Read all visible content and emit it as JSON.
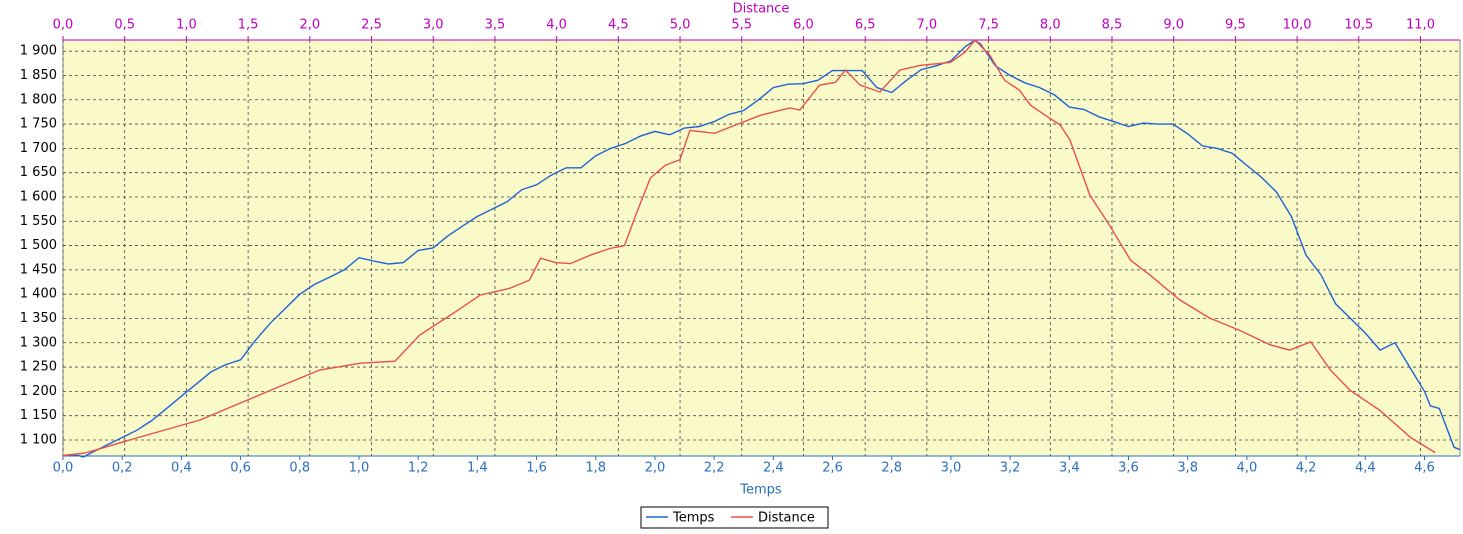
{
  "chart_data": {
    "type": "line",
    "xlabel": "Temps",
    "x2label": "Distance",
    "xlim": [
      0,
      4.72
    ],
    "x2lim": [
      0,
      11.32
    ],
    "ylim": [
      1067,
      1923
    ],
    "xticks": [
      {
        "value": 0,
        "label": "0,0"
      },
      {
        "value": 0.2,
        "label": "0,2"
      },
      {
        "value": 0.4,
        "label": "0,4"
      },
      {
        "value": 0.6,
        "label": "0,6"
      },
      {
        "value": 0.8,
        "label": "0,8"
      },
      {
        "value": 1.0,
        "label": "1,0"
      },
      {
        "value": 1.2,
        "label": "1,2"
      },
      {
        "value": 1.4,
        "label": "1,4"
      },
      {
        "value": 1.6,
        "label": "1,6"
      },
      {
        "value": 1.8,
        "label": "1,8"
      },
      {
        "value": 2.0,
        "label": "2,0"
      },
      {
        "value": 2.2,
        "label": "2,2"
      },
      {
        "value": 2.4,
        "label": "2,4"
      },
      {
        "value": 2.6,
        "label": "2,6"
      },
      {
        "value": 2.8,
        "label": "2,8"
      },
      {
        "value": 3.0,
        "label": "3,0"
      },
      {
        "value": 3.2,
        "label": "3,2"
      },
      {
        "value": 3.4,
        "label": "3,4"
      },
      {
        "value": 3.6,
        "label": "3,6"
      },
      {
        "value": 3.8,
        "label": "3,8"
      },
      {
        "value": 4.0,
        "label": "4,0"
      },
      {
        "value": 4.2,
        "label": "4,2"
      },
      {
        "value": 4.4,
        "label": "4,4"
      },
      {
        "value": 4.6,
        "label": "4,6"
      }
    ],
    "x2ticks": [
      {
        "value": 0,
        "label": "0,0"
      },
      {
        "value": 0.5,
        "label": "0,5"
      },
      {
        "value": 1.0,
        "label": "1,0"
      },
      {
        "value": 1.5,
        "label": "1,5"
      },
      {
        "value": 2.0,
        "label": "2,0"
      },
      {
        "value": 2.5,
        "label": "2,5"
      },
      {
        "value": 3.0,
        "label": "3,0"
      },
      {
        "value": 3.5,
        "label": "3,5"
      },
      {
        "value": 4.0,
        "label": "4,0"
      },
      {
        "value": 4.5,
        "label": "4,5"
      },
      {
        "value": 5.0,
        "label": "5,0"
      },
      {
        "value": 5.5,
        "label": "5,5"
      },
      {
        "value": 6.0,
        "label": "6,0"
      },
      {
        "value": 6.5,
        "label": "6,5"
      },
      {
        "value": 7.0,
        "label": "7,0"
      },
      {
        "value": 7.5,
        "label": "7,5"
      },
      {
        "value": 8.0,
        "label": "8,0"
      },
      {
        "value": 8.5,
        "label": "8,5"
      },
      {
        "value": 9.0,
        "label": "9,0"
      },
      {
        "value": 9.5,
        "label": "9,5"
      },
      {
        "value": 10.0,
        "label": "10,0"
      },
      {
        "value": 10.5,
        "label": "10,5"
      },
      {
        "value": 11.0,
        "label": "11,0"
      }
    ],
    "yticks": [
      {
        "value": 1100,
        "label": "1 100"
      },
      {
        "value": 1150,
        "label": "1 150"
      },
      {
        "value": 1200,
        "label": "1 200"
      },
      {
        "value": 1250,
        "label": "1 250"
      },
      {
        "value": 1300,
        "label": "1 300"
      },
      {
        "value": 1350,
        "label": "1 350"
      },
      {
        "value": 1400,
        "label": "1 400"
      },
      {
        "value": 1450,
        "label": "1 450"
      },
      {
        "value": 1500,
        "label": "1 500"
      },
      {
        "value": 1550,
        "label": "1 550"
      },
      {
        "value": 1600,
        "label": "1 600"
      },
      {
        "value": 1650,
        "label": "1 650"
      },
      {
        "value": 1700,
        "label": "1 700"
      },
      {
        "value": 1750,
        "label": "1 750"
      },
      {
        "value": 1800,
        "label": "1 800"
      },
      {
        "value": 1850,
        "label": "1 850"
      },
      {
        "value": 1900,
        "label": "1 900"
      }
    ],
    "grid": true,
    "legend": "bottom",
    "series": [
      {
        "name": "Temps",
        "color": "#1e62d8",
        "axis": "x",
        "x": [
          0,
          0.05,
          0.07,
          0.1,
          0.15,
          0.2,
          0.25,
          0.3,
          0.35,
          0.4,
          0.45,
          0.5,
          0.55,
          0.6,
          0.65,
          0.7,
          0.75,
          0.8,
          0.85,
          0.9,
          0.95,
          1.0,
          1.05,
          1.1,
          1.15,
          1.2,
          1.25,
          1.3,
          1.35,
          1.4,
          1.45,
          1.5,
          1.55,
          1.6,
          1.65,
          1.7,
          1.75,
          1.8,
          1.85,
          1.9,
          1.95,
          2.0,
          2.05,
          2.1,
          2.15,
          2.2,
          2.25,
          2.3,
          2.35,
          2.4,
          2.45,
          2.5,
          2.55,
          2.6,
          2.65,
          2.7,
          2.75,
          2.8,
          2.85,
          2.9,
          2.95,
          3.0,
          3.05,
          3.08,
          3.1,
          3.15,
          3.2,
          3.25,
          3.3,
          3.35,
          3.4,
          3.45,
          3.5,
          3.55,
          3.6,
          3.65,
          3.7,
          3.75,
          3.8,
          3.85,
          3.9,
          3.95,
          4.0,
          4.05,
          4.1,
          4.15,
          4.2,
          4.25,
          4.3,
          4.35,
          4.4,
          4.45,
          4.5,
          4.55,
          4.6,
          4.62,
          4.65,
          4.7,
          4.72
        ],
        "values": [
          1068,
          1068,
          1065,
          1075,
          1090,
          1105,
          1120,
          1140,
          1165,
          1190,
          1215,
          1240,
          1255,
          1265,
          1305,
          1340,
          1370,
          1400,
          1420,
          1435,
          1450,
          1475,
          1468,
          1462,
          1465,
          1490,
          1495,
          1520,
          1540,
          1560,
          1575,
          1590,
          1615,
          1625,
          1645,
          1660,
          1660,
          1685,
          1700,
          1710,
          1725,
          1735,
          1728,
          1742,
          1745,
          1755,
          1770,
          1778,
          1800,
          1825,
          1832,
          1833,
          1840,
          1860,
          1860,
          1860,
          1825,
          1815,
          1840,
          1862,
          1870,
          1880,
          1910,
          1922,
          1915,
          1870,
          1850,
          1835,
          1825,
          1810,
          1785,
          1780,
          1765,
          1755,
          1745,
          1752,
          1750,
          1750,
          1730,
          1705,
          1700,
          1690,
          1665,
          1640,
          1610,
          1560,
          1480,
          1440,
          1380,
          1350,
          1320,
          1285,
          1300,
          1250,
          1200,
          1170,
          1165,
          1085,
          1080
        ]
      },
      {
        "name": "Distance",
        "color": "#e8504a",
        "axis": "x2",
        "x": [
          0,
          0.18,
          0.54,
          1.11,
          1.68,
          2.08,
          2.41,
          2.69,
          2.89,
          3.14,
          3.38,
          3.62,
          3.78,
          3.87,
          3.99,
          4.11,
          4.27,
          4.43,
          4.55,
          4.64,
          4.76,
          4.88,
          5.0,
          5.08,
          5.28,
          5.45,
          5.65,
          5.89,
          5.97,
          6.13,
          6.26,
          6.34,
          6.46,
          6.62,
          6.78,
          6.95,
          7.19,
          7.31,
          7.39,
          7.51,
          7.63,
          7.75,
          7.84,
          7.96,
          8.08,
          8.16,
          8.32,
          8.48,
          8.65,
          8.81,
          9.05,
          9.29,
          9.53,
          9.78,
          9.94,
          10.11,
          10.27,
          10.43,
          10.67,
          10.92,
          11.12
        ],
        "values": [
          1068,
          1073,
          1100,
          1141,
          1202,
          1244,
          1258,
          1262,
          1316,
          1357,
          1398,
          1412,
          1429,
          1474,
          1465,
          1463,
          1480,
          1494,
          1500,
          1562,
          1639,
          1665,
          1677,
          1737,
          1731,
          1748,
          1768,
          1783,
          1779,
          1830,
          1836,
          1861,
          1830,
          1816,
          1861,
          1871,
          1877,
          1898,
          1923,
          1892,
          1840,
          1820,
          1789,
          1768,
          1748,
          1717,
          1604,
          1542,
          1470,
          1439,
          1388,
          1351,
          1326,
          1296,
          1285,
          1302,
          1244,
          1202,
          1161,
          1105,
          1074
        ]
      }
    ]
  }
}
